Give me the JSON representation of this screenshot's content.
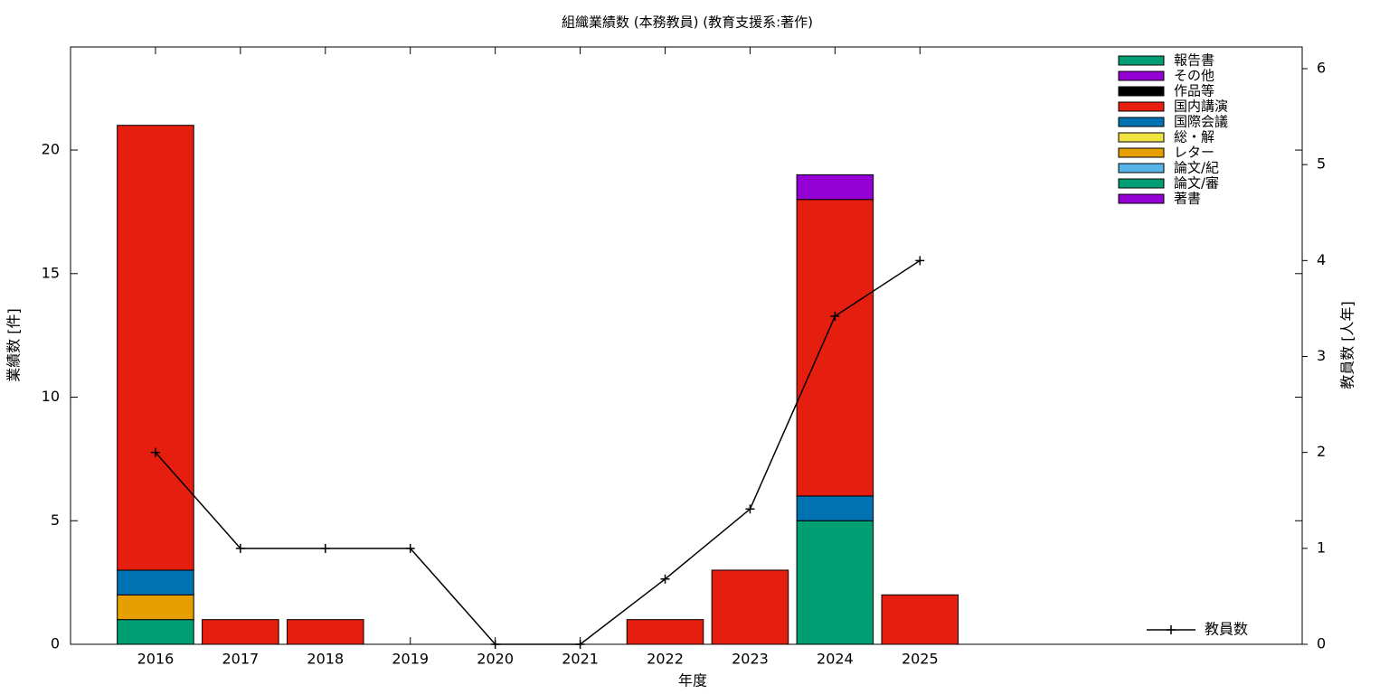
{
  "chart_data": {
    "type": "bar",
    "stacked": true,
    "title": "組織業績数 (本務教員) (教育支援系:著作)",
    "x_label": "年度",
    "y_label": "業績数 [件]",
    "y2_label": "教員数 [人年]",
    "x": [
      2016,
      2017,
      2018,
      2019,
      2020,
      2021,
      2022,
      2023,
      2024,
      2025
    ],
    "xlim": [
      2015,
      2029.5
    ],
    "xticks": [
      2016,
      2017,
      2018,
      2019,
      2020,
      2021,
      2022,
      2023,
      2024,
      2025
    ],
    "ylim": [
      0,
      24.17
    ],
    "yticks": [
      0,
      5,
      10,
      15,
      20
    ],
    "y2lim": [
      0,
      6.226
    ],
    "y2ticks": [
      0,
      1,
      2,
      3,
      4,
      5,
      6
    ],
    "legend": "top right",
    "series": [
      {
        "name": "報告書",
        "color": "#009e73",
        "values": [
          0,
          0,
          0,
          0,
          0,
          0,
          0,
          0,
          0,
          0
        ]
      },
      {
        "name": "その他",
        "color": "#9400d3",
        "values": [
          0,
          0,
          0,
          0,
          0,
          0,
          0,
          0,
          1,
          0
        ]
      },
      {
        "name": "作品等",
        "color": "#000000",
        "values": [
          0,
          0,
          0,
          0,
          0,
          0,
          0,
          0,
          0,
          0
        ]
      },
      {
        "name": "国内講演",
        "color": "#e51e10",
        "values": [
          18,
          1,
          1,
          0,
          0,
          0,
          1,
          3,
          12,
          2
        ]
      },
      {
        "name": "国際会議",
        "color": "#0072b2",
        "values": [
          1,
          0,
          0,
          0,
          0,
          0,
          0,
          0,
          1,
          0
        ]
      },
      {
        "name": "総・解",
        "color": "#f0e442",
        "values": [
          0,
          0,
          0,
          0,
          0,
          0,
          0,
          0,
          0,
          0
        ]
      },
      {
        "name": "レター",
        "color": "#e69f00",
        "values": [
          1,
          0,
          0,
          0,
          0,
          0,
          0,
          0,
          0,
          0
        ]
      },
      {
        "name": "論文/紀",
        "color": "#56b4e9",
        "values": [
          0,
          0,
          0,
          0,
          0,
          0,
          0,
          0,
          0,
          0
        ]
      },
      {
        "name": "論文/審",
        "color": "#009e73",
        "values": [
          1,
          0,
          0,
          0,
          0,
          0,
          0,
          0,
          5,
          0
        ]
      },
      {
        "name": "著書",
        "color": "#9400d3",
        "values": [
          0,
          0,
          0,
          0,
          0,
          0,
          0,
          0,
          0,
          0
        ]
      },
      {
        "name": "教員数",
        "color": "#000000",
        "type": "line",
        "axis": "y2",
        "values": [
          2,
          1,
          1,
          1,
          0,
          0,
          0.68,
          1.41,
          3.42,
          4
        ]
      }
    ]
  }
}
